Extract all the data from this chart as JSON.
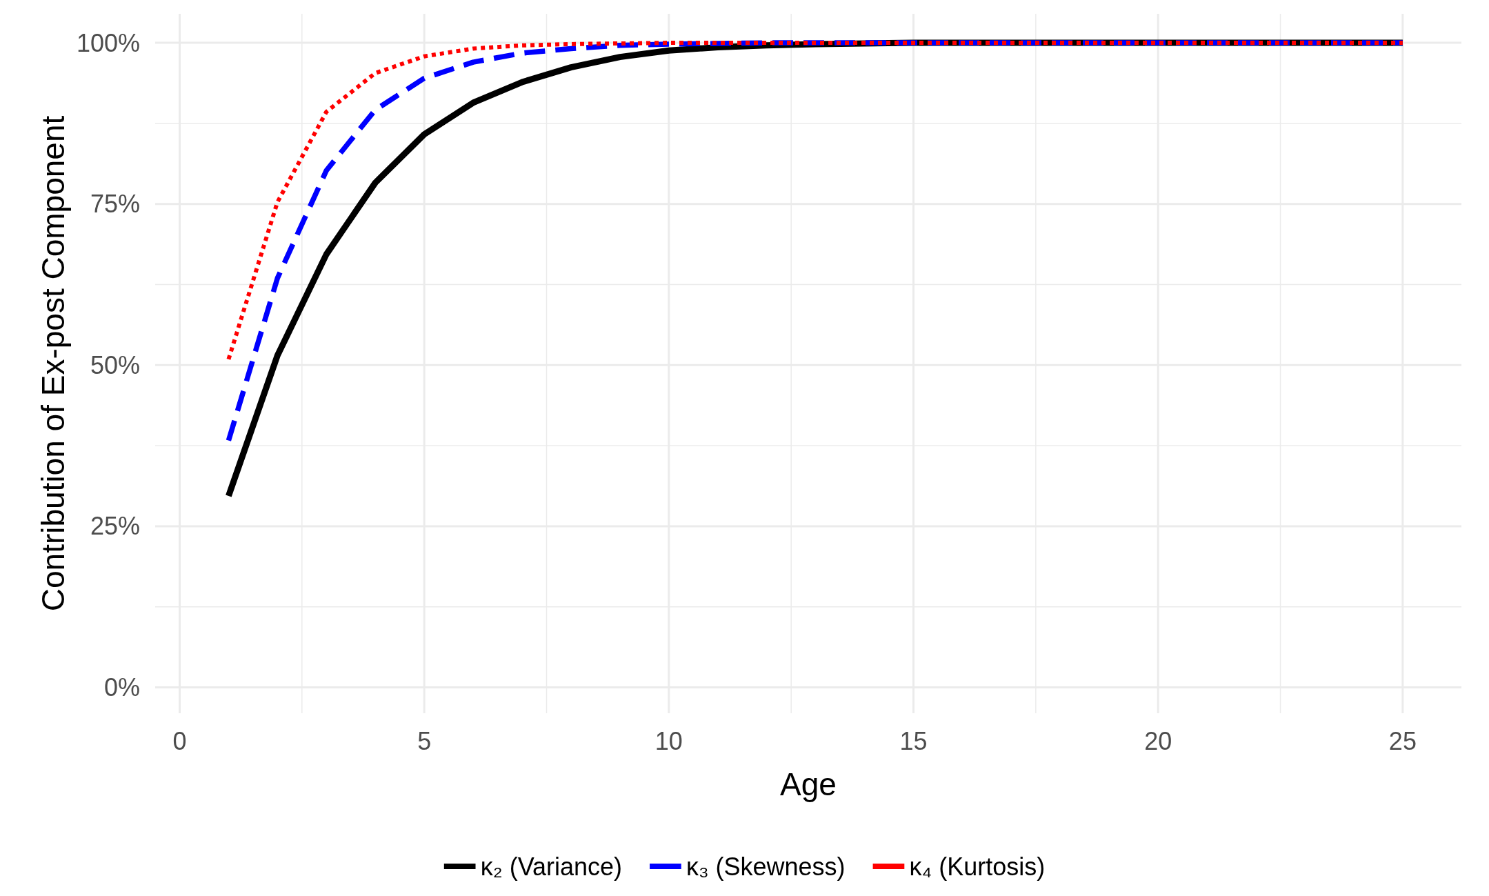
{
  "chart_data": {
    "type": "line",
    "xlabel": "Age",
    "ylabel": "Contribution of Ex-post Component",
    "x": [
      1,
      2,
      3,
      4,
      5,
      6,
      7,
      8,
      9,
      10,
      11,
      12,
      13,
      14,
      15,
      16,
      17,
      18,
      19,
      20,
      21,
      22,
      23,
      24,
      25
    ],
    "series": [
      {
        "name": "κ₂ (Variance)",
        "color": "#000000",
        "line_style": "solid",
        "values": [
          29.7,
          51.5,
          67.2,
          78.3,
          85.8,
          90.7,
          93.9,
          96.2,
          97.8,
          98.8,
          99.3,
          99.6,
          99.8,
          99.9,
          100,
          100,
          100,
          100,
          100,
          100,
          100,
          100,
          100,
          100,
          100
        ]
      },
      {
        "name": "κ₃ (Skewness)",
        "color": "#0000ff",
        "line_style": "dashed",
        "values": [
          38.3,
          63.5,
          80.2,
          89.6,
          94.5,
          97.0,
          98.4,
          99.1,
          99.6,
          99.8,
          99.9,
          100,
          100,
          100,
          100,
          100,
          100,
          100,
          100,
          100,
          100,
          100,
          100,
          100,
          100
        ]
      },
      {
        "name": "κ₄ (Kurtosis)",
        "color": "#ff0000",
        "line_style": "dotted",
        "values": [
          50.9,
          75.3,
          89.3,
          95.3,
          97.9,
          99.1,
          99.6,
          99.8,
          99.9,
          100,
          100,
          100,
          100,
          100,
          100,
          100,
          100,
          100,
          100,
          100,
          100,
          100,
          100,
          100,
          100
        ]
      }
    ],
    "xlim": [
      -0.5,
      26.2
    ],
    "xticks": [
      0,
      {
        "value": 2.5,
        "label": null
      },
      5,
      {
        "value": 7.5,
        "label": null
      },
      10,
      {
        "value": 12.5,
        "label": null
      },
      15,
      {
        "value": 17.5,
        "label": null
      },
      20,
      {
        "value": 22.5,
        "label": null
      },
      25
    ],
    "ylim": [
      -4,
      104.5
    ],
    "yticks": [
      {
        "value": 0,
        "label": "0%"
      },
      {
        "value": 12.5,
        "label": null
      },
      {
        "value": 25,
        "label": "25%"
      },
      {
        "value": 37.5,
        "label": null
      },
      {
        "value": 50,
        "label": "50%"
      },
      {
        "value": 62.5,
        "label": null
      },
      {
        "value": 75,
        "label": "75%"
      },
      {
        "value": 87.5,
        "label": null
      },
      {
        "value": 100,
        "label": "100%"
      }
    ],
    "grid": true,
    "legend": "bottom",
    "marker": "none"
  }
}
